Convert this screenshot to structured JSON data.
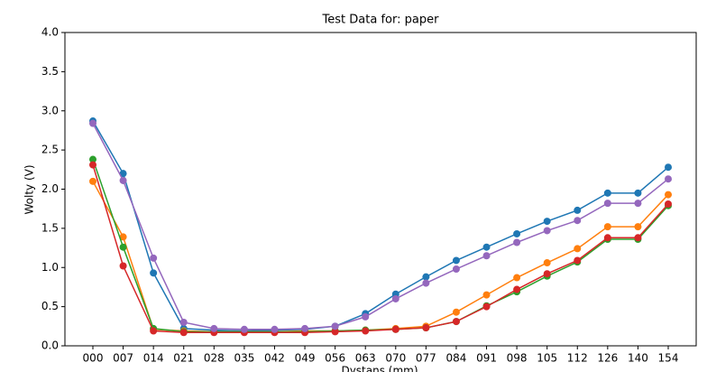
{
  "chart_data": {
    "type": "line",
    "title": "Test Data for: paper",
    "xlabel": "Dystans (mm)",
    "ylabel": "Wolty (V)",
    "categories": [
      "000",
      "007",
      "014",
      "021",
      "028",
      "035",
      "042",
      "049",
      "056",
      "063",
      "070",
      "077",
      "084",
      "091",
      "098",
      "105",
      "112",
      "126",
      "140",
      "154"
    ],
    "series": [
      {
        "color": "#1f77b4",
        "values": [
          2.87,
          2.2,
          0.93,
          0.22,
          0.2,
          0.19,
          0.2,
          0.21,
          0.25,
          0.41,
          0.66,
          0.88,
          1.09,
          1.26,
          1.43,
          1.59,
          1.73,
          1.95,
          1.95,
          2.28
        ]
      },
      {
        "color": "#ff7f0e",
        "values": [
          2.1,
          1.39,
          0.21,
          0.19,
          0.18,
          0.18,
          0.18,
          0.19,
          0.19,
          0.2,
          0.22,
          0.25,
          0.43,
          0.65,
          0.87,
          1.06,
          1.24,
          1.52,
          1.52,
          1.93
        ]
      },
      {
        "color": "#2ca02c",
        "values": [
          2.38,
          1.26,
          0.22,
          0.18,
          0.18,
          0.18,
          0.18,
          0.18,
          0.19,
          0.2,
          0.21,
          0.23,
          0.31,
          0.51,
          0.69,
          0.89,
          1.07,
          1.36,
          1.36,
          1.79
        ]
      },
      {
        "color": "#d62728",
        "values": [
          2.31,
          1.02,
          0.19,
          0.17,
          0.17,
          0.17,
          0.17,
          0.17,
          0.18,
          0.19,
          0.21,
          0.23,
          0.31,
          0.5,
          0.72,
          0.92,
          1.09,
          1.38,
          1.38,
          1.81
        ]
      },
      {
        "color": "#9467bd",
        "values": [
          2.84,
          2.11,
          1.12,
          0.3,
          0.22,
          0.21,
          0.21,
          0.22,
          0.25,
          0.37,
          0.6,
          0.8,
          0.98,
          1.15,
          1.32,
          1.47,
          1.6,
          1.82,
          1.82,
          2.13
        ]
      }
    ],
    "ylim": [
      0,
      4
    ],
    "yticks": [
      {
        "value": 0,
        "label": "0.0"
      },
      0.5,
      {
        "value": 1,
        "label": "1.0"
      },
      1.5,
      {
        "value": 2,
        "label": "2.0"
      },
      2.5,
      {
        "value": 3,
        "label": "3.0"
      },
      3.5,
      {
        "value": 4,
        "label": "4.0"
      }
    ]
  }
}
